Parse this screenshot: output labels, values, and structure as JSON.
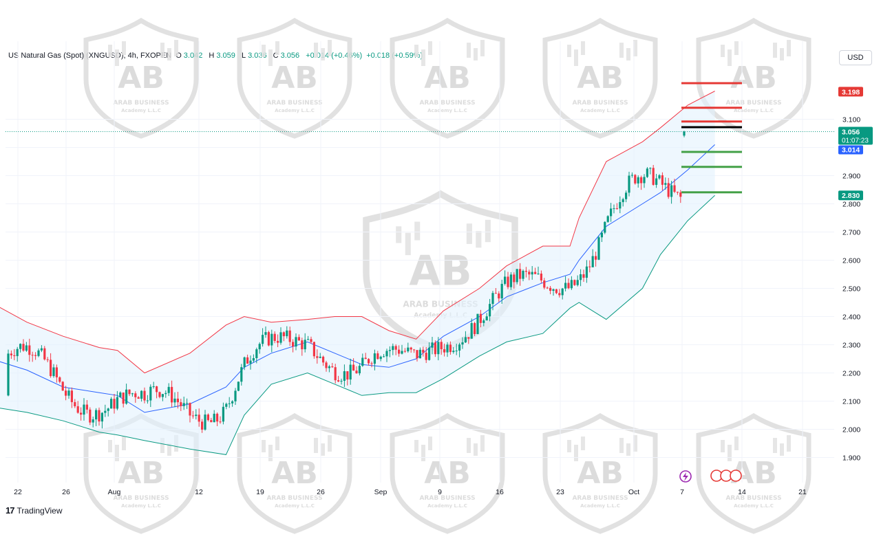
{
  "header": {
    "symbol": "US Natural Gas (Spot) (XNGUSD), 4h, FXOPEN",
    "o_label": "O",
    "o_value": "3.042",
    "h_label": "H",
    "h_value": "3.059",
    "l_label": "L",
    "l_value": "3.036",
    "c_label": "C",
    "c_value": "3.056",
    "change": "+0.014 (+0.46%)",
    "change2": "+0.018 (+0.59%)"
  },
  "currency_button": "USD",
  "branding": {
    "logo_mark": "17",
    "logo_text": "TradingView"
  },
  "watermark": {
    "line1": "ARAB BUSINESS",
    "line2": "Academy L.L.C",
    "monogram": "AB"
  },
  "colors": {
    "up": "#089981",
    "down": "#f23645",
    "upper_band": "#f23645",
    "lower_band": "#089981",
    "basis": "#2962ff",
    "band_fill": "#e3f2fd",
    "resistance": "#e53935",
    "support": "#43a047",
    "pivot": "#000000",
    "current_tag": "#089981",
    "ma_tag": "#2962ff"
  },
  "chart_data": {
    "type": "candlestick",
    "timeframe": "4h",
    "ylim": [
      1.85,
      3.22
    ],
    "y_ticks": [
      "3.100",
      "3.000",
      "2.900",
      "2.800",
      "2.700",
      "2.600",
      "2.500",
      "2.400",
      "2.300",
      "2.200",
      "2.100",
      "2.000",
      "1.900"
    ],
    "x_ticks": [
      "22",
      "26",
      "Aug",
      "12",
      "19",
      "26",
      "Sep",
      "9",
      "16",
      "23",
      "Oct",
      "7",
      "14",
      "21"
    ],
    "current_price": "3.056",
    "countdown": "01:07:23",
    "basis_value": "3.014",
    "price_tags": [
      {
        "label": "3.198",
        "value": 3.198,
        "color": "#e53935"
      },
      {
        "label": "2.830",
        "value": 2.83,
        "color": "#089981"
      }
    ],
    "resistance_levels": [
      3.228,
      3.141,
      3.092
    ],
    "pivot_level": 3.072,
    "support_levels": [
      2.984,
      2.931,
      2.841
    ],
    "indicator": "Bollinger Bands",
    "band_points": [
      {
        "x": "Jul 19",
        "basis": 2.25,
        "upper": 2.45,
        "lower": 2.08
      },
      {
        "x": "Jul 23",
        "basis": 2.21,
        "upper": 2.38,
        "lower": 2.06
      },
      {
        "x": "Jul 27",
        "basis": 2.15,
        "upper": 2.33,
        "lower": 2.03
      },
      {
        "x": "Jul 31",
        "basis": 2.13,
        "upper": 2.29,
        "lower": 1.99
      },
      {
        "x": "Aug 2",
        "basis": 2.12,
        "upper": 2.28,
        "lower": 1.98
      },
      {
        "x": "Aug 5",
        "basis": 2.06,
        "upper": 2.2,
        "lower": 1.96
      },
      {
        "x": "Aug 10",
        "basis": 2.09,
        "upper": 2.27,
        "lower": 1.93
      },
      {
        "x": "Aug 14",
        "basis": 2.15,
        "upper": 2.37,
        "lower": 1.91
      },
      {
        "x": "Aug 16",
        "basis": 2.22,
        "upper": 2.4,
        "lower": 2.05
      },
      {
        "x": "Aug 19",
        "basis": 2.27,
        "upper": 2.38,
        "lower": 2.16
      },
      {
        "x": "Aug 23",
        "basis": 2.31,
        "upper": 2.39,
        "lower": 2.2
      },
      {
        "x": "Aug 26",
        "basis": 2.27,
        "upper": 2.4,
        "lower": 2.16
      },
      {
        "x": "Aug 29",
        "basis": 2.23,
        "upper": 2.4,
        "lower": 2.12
      },
      {
        "x": "Sep 1",
        "basis": 2.22,
        "upper": 2.35,
        "lower": 2.13
      },
      {
        "x": "Sep 4",
        "basis": 2.25,
        "upper": 2.32,
        "lower": 2.13
      },
      {
        "x": "Sep 7",
        "basis": 2.33,
        "upper": 2.42,
        "lower": 2.18
      },
      {
        "x": "Sep 11",
        "basis": 2.4,
        "upper": 2.5,
        "lower": 2.26
      },
      {
        "x": "Sep 14",
        "basis": 2.47,
        "upper": 2.58,
        "lower": 2.31
      },
      {
        "x": "Sep 18",
        "basis": 2.52,
        "upper": 2.65,
        "lower": 2.34
      },
      {
        "x": "Sep 21",
        "basis": 2.55,
        "upper": 2.65,
        "lower": 2.43
      },
      {
        "x": "Sep 22",
        "basis": 2.6,
        "upper": 2.75,
        "lower": 2.45
      },
      {
        "x": "Sep 25",
        "basis": 2.72,
        "upper": 2.95,
        "lower": 2.39
      },
      {
        "x": "Sep 29",
        "basis": 2.8,
        "upper": 3.02,
        "lower": 2.5
      },
      {
        "x": "Oct 1",
        "basis": 2.84,
        "upper": 3.07,
        "lower": 2.62
      },
      {
        "x": "Oct 4",
        "basis": 2.92,
        "upper": 3.15,
        "lower": 2.74
      },
      {
        "x": "Oct 7",
        "basis": 3.01,
        "upper": 3.2,
        "lower": 2.83
      }
    ],
    "candles": [
      [
        3.042,
        3.059,
        3.036,
        3.056
      ]
    ]
  }
}
